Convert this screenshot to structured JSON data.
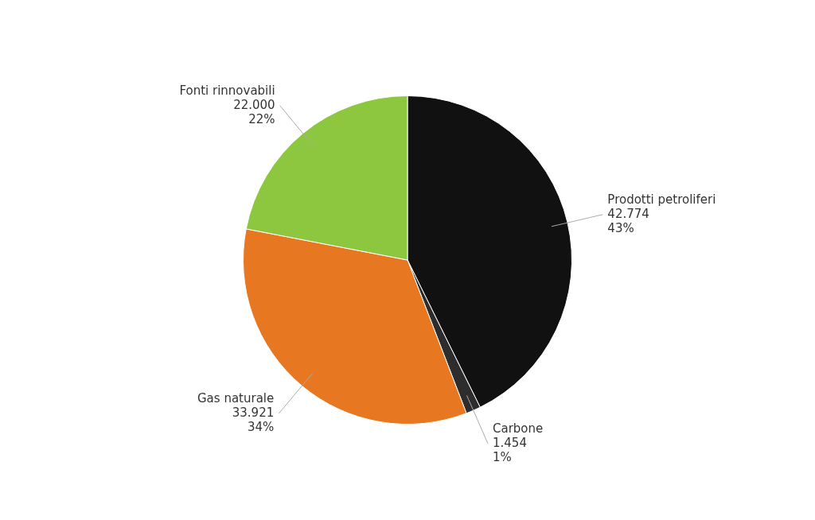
{
  "chart_data": {
    "type": "pie",
    "categories": [
      "Prodotti petroliferi",
      "Carbone",
      "Gas naturale",
      "Fonti rinnovabili"
    ],
    "values": [
      42.774,
      1.454,
      33.921,
      22.0
    ],
    "value_labels": [
      "Prodotti petroliferi\n42.774\n43%",
      "Carbone\n1.454\n1%",
      "Gas naturale\n33.921\n34%",
      "Fonti rinnovabili\n22.000\n22%"
    ],
    "colors": [
      "#111111",
      "#2d2d2d",
      "#e87722",
      "#8dc63f"
    ],
    "data_labels": true
  }
}
